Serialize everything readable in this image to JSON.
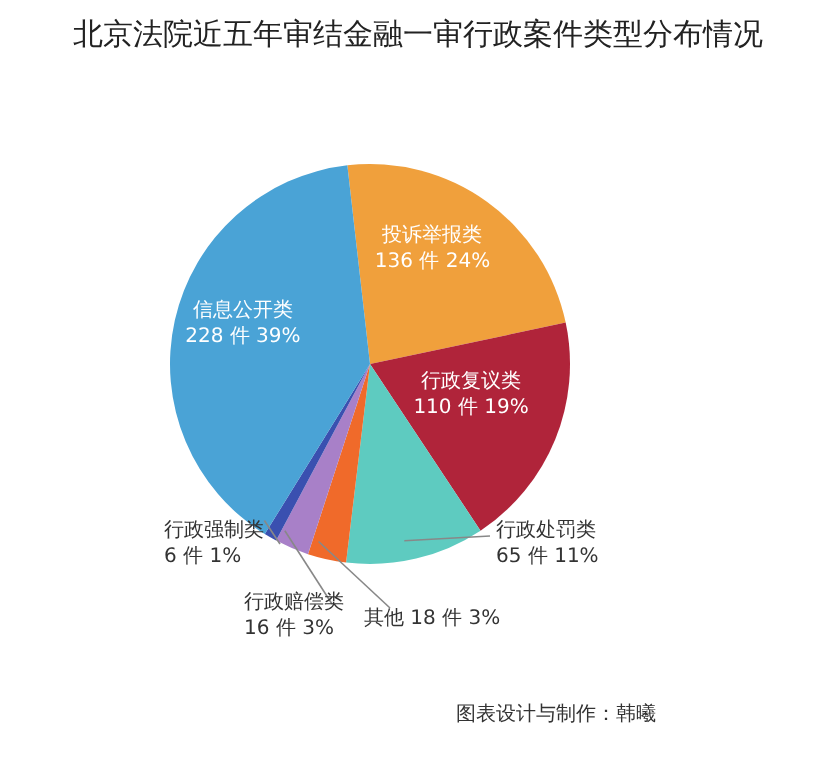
{
  "chart_data": {
    "type": "pie",
    "title": "北京法院近五年审结金融一审行政案件类型分布情况",
    "categories": [
      "投诉举报类",
      "行政复议类",
      "行政处罚类",
      "其他",
      "行政赔偿类",
      "行政强制类",
      "信息公开类"
    ],
    "values": [
      136,
      110,
      65,
      18,
      16,
      6,
      228
    ],
    "value_labels": [
      "136 件 24%",
      "110 件 19%",
      "65 件 11%",
      "18 件 3%",
      "16 件 3%",
      "6 件 1%",
      "228 件 39%"
    ],
    "colors": [
      "#f0a03c",
      "#b0243a",
      "#5ecbc0",
      "#f06a2a",
      "#a880c8",
      "#3a50b0",
      "#4aa3d6"
    ],
    "annotations": [
      "图表设计与制作：韩曦"
    ]
  }
}
